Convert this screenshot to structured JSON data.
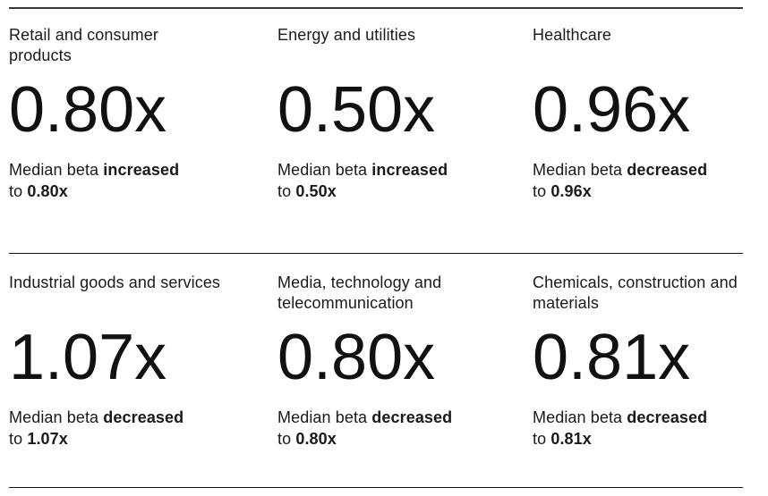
{
  "colors": {
    "background": "#ffffff",
    "text": "#1a1a1a",
    "value_text": "#111111",
    "rule_top": "#3a3a3a",
    "rule_thin": "#111111"
  },
  "chart_data": {
    "type": "table",
    "columns": [
      "sector",
      "median_beta",
      "change_direction"
    ],
    "unit": "x (beta multiple)",
    "rows": [
      [
        "Retail and consumer products",
        0.8,
        "increased"
      ],
      [
        "Energy and utilities",
        0.5,
        "increased"
      ],
      [
        "Healthcare",
        0.96,
        "decreased"
      ],
      [
        "Industrial goods and services",
        1.07,
        "decreased"
      ],
      [
        "Media, technology and telecommunication",
        0.8,
        "decreased"
      ],
      [
        "Chemicals, construction and materials",
        0.81,
        "decreased"
      ]
    ]
  },
  "cards": [
    {
      "title": "Retail and consumer products",
      "value": "0.80x",
      "caption_lead": "Median beta",
      "direction": "increased",
      "caption_to": "to"
    },
    {
      "title": "Energy and utilities",
      "value": "0.50x",
      "caption_lead": "Median beta",
      "direction": "increased",
      "caption_to": "to"
    },
    {
      "title": "Healthcare",
      "value": "0.96x",
      "caption_lead": "Median beta",
      "direction": "decreased",
      "caption_to": "to"
    },
    {
      "title": "Industrial goods and services",
      "value": "1.07x",
      "caption_lead": "Median beta",
      "direction": "decreased",
      "caption_to": "to"
    },
    {
      "title": "Media, technology and telecommunication",
      "value": "0.80x",
      "caption_lead": "Median beta",
      "direction": "decreased",
      "caption_to": "to"
    },
    {
      "title": "Chemicals, construction and materials",
      "value": "0.81x",
      "caption_lead": "Median beta",
      "direction": "decreased",
      "caption_to": "to"
    }
  ]
}
